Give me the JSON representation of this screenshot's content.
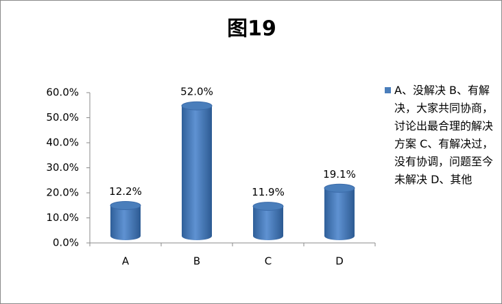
{
  "chart_data": {
    "type": "bar",
    "title": "图19",
    "categories": [
      "A",
      "B",
      "C",
      "D"
    ],
    "series": [
      {
        "name": "A、没解决 B、有解决，大家共同协商，讨论出最合理的解决方案 C、有解决过，没有协调，问题至今未解决 D、其他",
        "color": "#4a7ebb",
        "values": [
          12.2,
          52.0,
          11.9,
          19.1
        ],
        "value_labels": [
          "12.2%",
          "52.0%",
          "11.9%",
          "19.1%"
        ]
      }
    ],
    "ylim": [
      0,
      60
    ],
    "yticks": [
      {
        "value": 0,
        "label": "0.0%"
      },
      {
        "value": 10,
        "label": "10.0%"
      },
      {
        "value": 20,
        "label": "20.0%"
      },
      {
        "value": 30,
        "label": "30.0%"
      },
      {
        "value": 40,
        "label": "40.0%"
      },
      {
        "value": 50,
        "label": "50.0%"
      },
      {
        "value": 60,
        "label": "60.0%"
      }
    ],
    "legend": "right"
  }
}
